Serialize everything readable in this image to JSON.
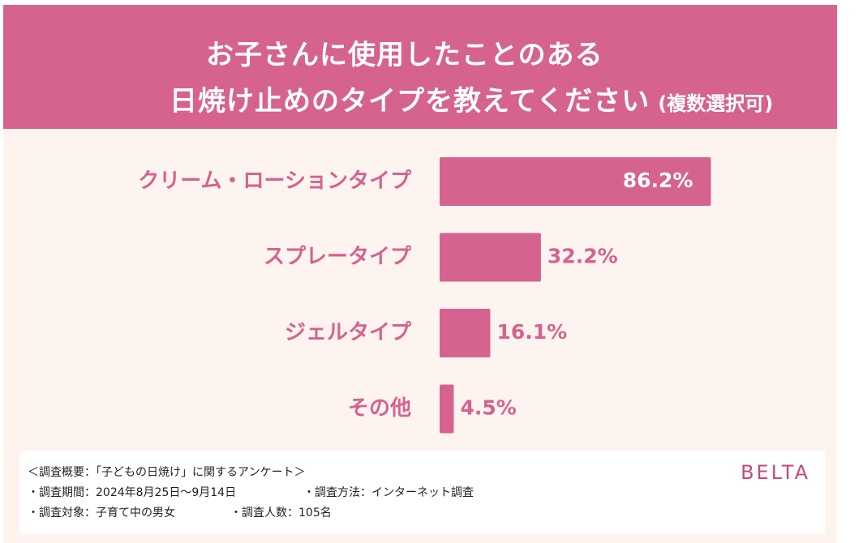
{
  "header": {
    "title_line1": "お子さんに使用したことのある",
    "title_line2": "日焼け止めのタイプを教えてください",
    "title_note": "(複数選択可)"
  },
  "colors": {
    "header_bg": "#d6628f",
    "bar": "#d6628f",
    "chart_bg": "#fdf4ef",
    "value_inside": "#ffffff",
    "value_outside": "#d6628f"
  },
  "chart_data": {
    "type": "bar",
    "orientation": "horizontal",
    "title": "お子さんに使用したことのある 日焼け止めのタイプを教えてください (複数選択可)",
    "categories": [
      "クリーム・ローションタイプ",
      "スプレータイプ",
      "ジェルタイプ",
      "その他"
    ],
    "values": [
      86.2,
      32.2,
      16.1,
      4.5
    ],
    "value_labels": [
      "86.2%",
      "32.2%",
      "16.1%",
      "4.5%"
    ],
    "unit": "%",
    "xlim": [
      0,
      100
    ],
    "grid": false,
    "legend": "none"
  },
  "survey": {
    "heading": "＜調査概要：「子どもの日焼け」に関するアンケート＞",
    "period": "・調査期間：2024年8月25日〜9月14日",
    "method": "・調査方法：インターネット調査",
    "target": "・調査対象：子育て中の男女",
    "count": "・調査人数：105名"
  },
  "brand": "BELTA"
}
